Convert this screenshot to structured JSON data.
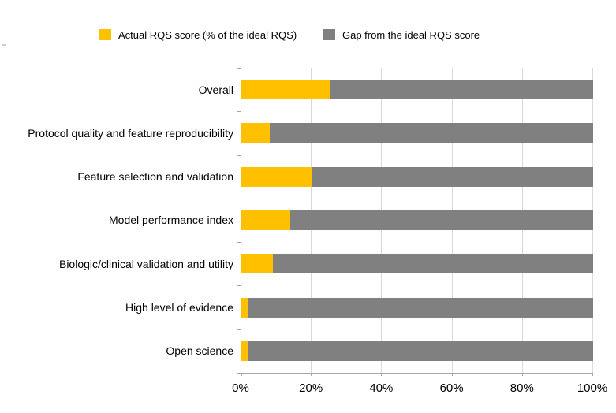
{
  "legend": [
    {
      "label": "Actual RQS score (% of the ideal RQS)",
      "color": "#FFC000"
    },
    {
      "label": "Gap from the ideal RQS score",
      "color": "#808080"
    }
  ],
  "colors": {
    "actual": "#FFC000",
    "gap": "#808080",
    "gridline": "#D9D9D9",
    "axis": "#A6A6A6"
  },
  "chart_data": {
    "type": "bar",
    "orientation": "horizontal",
    "stacked": true,
    "title": "",
    "xlabel": "",
    "ylabel": "",
    "xlim": [
      0,
      100
    ],
    "grid": true,
    "legend_position": "top",
    "x_ticks": [
      "0%",
      "20%",
      "40%",
      "60%",
      "80%",
      "100%"
    ],
    "x_tick_values": [
      0,
      20,
      40,
      60,
      80,
      100
    ],
    "categories": [
      "Overall",
      "Protocol quality and feature reproducibility",
      "Feature selection and validation",
      "Model performance index",
      "Biologic/clinical validation and utility",
      "High level of evidence",
      "Open science"
    ],
    "series": [
      {
        "name": "Actual RQS score (% of the ideal RQS)",
        "color": "#FFC000",
        "values": [
          25,
          8,
          20,
          14,
          9,
          2,
          2
        ]
      },
      {
        "name": "Gap from the ideal RQS score",
        "color": "#808080",
        "values": [
          75,
          92,
          80,
          86,
          91,
          98,
          98
        ]
      }
    ]
  }
}
